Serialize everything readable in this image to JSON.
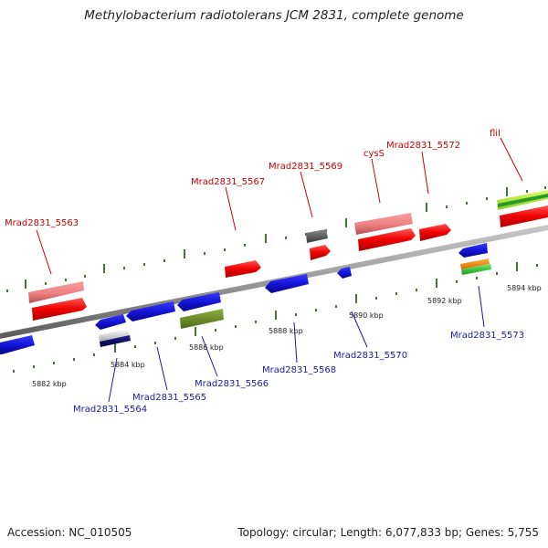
{
  "title": "Methylobacterium radiotolerans JCM 2831, complete genome",
  "footer": {
    "accession": "Accession: NC_010505",
    "summary": "Topology: circular; Length: 6,077,833 bp; Genes: 5,755"
  },
  "ticks": [
    "5882 kbp",
    "5884 kbp",
    "5886 kbp",
    "5888 kbp",
    "5890 kbp",
    "5892 kbp",
    "5894 kbp"
  ],
  "labels": {
    "top": [
      "Mrad2831_5563",
      "Mrad2831_5567",
      "Mrad2831_5569",
      "cysS",
      "Mrad2831_5572",
      "flil"
    ],
    "bottom": [
      "Mrad2831_5564",
      "Mrad2831_5565",
      "Mrad2831_5566",
      "Mrad2831_5568",
      "Mrad2831_5570",
      "Mrad2831_5573"
    ]
  },
  "colors": {
    "plus_strand_label": "#cc0000",
    "minus_strand_label": "#1a1aa6",
    "gene_red": "#ee1111",
    "gene_pink": "#f08080",
    "gene_blue": "#1b1bd6",
    "gene_gray": "#666666",
    "gene_olive": "#6b8e23",
    "gene_lime": "#aaee33",
    "gene_orange": "#ff8c00",
    "gene_green": "#33cc33",
    "gene_navy": "#000066",
    "tick_green": "#2a6a1a"
  }
}
